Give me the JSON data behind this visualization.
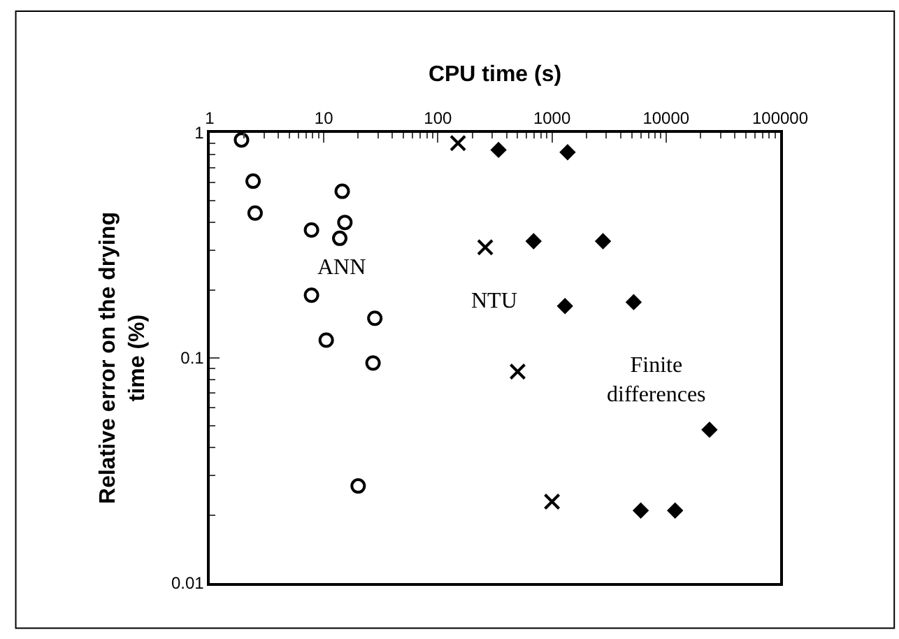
{
  "chart_data": {
    "type": "scatter",
    "xlabel": "CPU time (s)",
    "ylabel": "Relative error on the drying\ntime (%)",
    "log": "xy",
    "xlim": [
      1,
      100000
    ],
    "xticks": [
      1,
      10,
      100,
      1000,
      10000,
      100000
    ],
    "ylim": [
      0.01,
      1
    ],
    "yticks": [
      0.01,
      0.1,
      1
    ],
    "series": [
      {
        "name": "ANN",
        "color": "#000000",
        "marker": "circle-open",
        "x": [
          1.9,
          2.4,
          2.5,
          7.8,
          14.5,
          15.3,
          13.8,
          7.8,
          10.5,
          28,
          27,
          20
        ],
        "values": [
          0.93,
          0.61,
          0.44,
          0.37,
          0.55,
          0.4,
          0.34,
          0.19,
          0.12,
          0.15,
          0.095,
          0.027
        ]
      },
      {
        "name": "NTU",
        "color": "#000000",
        "marker": "cross",
        "x": [
          150,
          260,
          500,
          1000
        ],
        "values": [
          0.9,
          0.31,
          0.087,
          0.023
        ]
      },
      {
        "name": "Finite\ndifferences",
        "color": "#000000",
        "marker": "diamond",
        "x": [
          340,
          1370,
          690,
          2800,
          1300,
          5200,
          24000,
          6000,
          12000
        ],
        "values": [
          0.84,
          0.82,
          0.33,
          0.33,
          0.17,
          0.177,
          0.048,
          0.021,
          0.021
        ]
      }
    ]
  }
}
